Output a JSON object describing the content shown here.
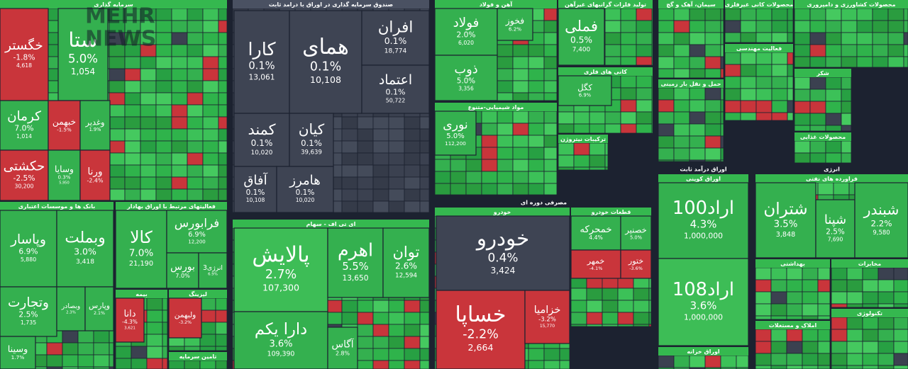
{
  "watermark": [
    "MEHR",
    "NEWS"
  ],
  "groups": [
    "مصرفی دوره ای",
    "اوراق درآمد ثابت",
    "انرژی"
  ],
  "sectors": [
    {
      "title": "سرمایه گذاری",
      "tiles": [
        {
          "name": "خگستر",
          "change": "-1.8%",
          "price": "4,618"
        },
        {
          "name": "ستا",
          "change": "5.0%",
          "price": "1,054"
        },
        {
          "name": "کرمان",
          "change": "7.0%",
          "price": "1,014"
        },
        {
          "name": "حکشتی",
          "change": "-2.5%",
          "price": "30,200"
        },
        {
          "name": "خبهمن",
          "change": "-1.5%"
        },
        {
          "name": "وغدیر",
          "change": "1.9%"
        },
        {
          "name": "وسایا",
          "change": "0.3%",
          "price": "5,950"
        },
        {
          "name": "ورنا",
          "change": "-2.4%"
        }
      ]
    },
    {
      "title": "بانک ها و موسسات اعتباری",
      "tiles": [
        {
          "name": "وپاسار",
          "change": "6.9%",
          "price": "5,880"
        },
        {
          "name": "وبملت",
          "change": "3.0%",
          "price": "3,418"
        },
        {
          "name": "وتجارت",
          "change": "2.5%",
          "price": "1,735"
        },
        {
          "name": "وبصادر",
          "change": "2.3%"
        },
        {
          "name": "وپارس",
          "change": "2.1%"
        },
        {
          "name": "وسینا",
          "change": "1.7%"
        }
      ]
    },
    {
      "title": "فعالیتهای مرتبط با اوراق بهادار",
      "tiles": [
        {
          "name": "کالا",
          "change": "7.0%",
          "price": "21,190"
        },
        {
          "name": "فرابورس",
          "change": "6.9%",
          "price": "12,200"
        },
        {
          "name": "بورس",
          "change": "7.0%"
        },
        {
          "name": "انرژی3",
          "change": "6.9%"
        }
      ]
    },
    {
      "title": "بیمه",
      "tiles": [
        {
          "name": "دانا",
          "change": "-4.3%",
          "price": "3,621"
        }
      ]
    },
    {
      "title": "لیزینگ",
      "tiles": [
        {
          "name": "ولبهمن",
          "change": "-3.2%"
        }
      ]
    },
    {
      "title": "تامین سرمایه",
      "tiles": []
    },
    {
      "title": "صندوق سرمایه گذاری در اوراق با درامد ثابت",
      "tiles": [
        {
          "name": "کارا",
          "change": "0.1%",
          "price": "13,061"
        },
        {
          "name": "همای",
          "change": "0.1%",
          "price": "10,108"
        },
        {
          "name": "افران",
          "change": "0.1%",
          "price": "18,774"
        },
        {
          "name": "اعتماد",
          "change": "0.1%",
          "price": "50,722"
        },
        {
          "name": "کمند",
          "change": "0.1%",
          "price": "10,020"
        },
        {
          "name": "کیان",
          "change": "0.1%",
          "price": "39,639"
        },
        {
          "name": "آفاق",
          "change": "0.1%",
          "price": "10,108"
        },
        {
          "name": "هامرز",
          "change": "0.1%",
          "price": "10,020"
        }
      ]
    },
    {
      "title": "ای تی اف - سهام",
      "tiles": [
        {
          "name": "پالایش",
          "change": "2.7%",
          "price": "107,300"
        },
        {
          "name": "اهرم",
          "change": "5.5%",
          "price": "13,650"
        },
        {
          "name": "توان",
          "change": "2.6%",
          "price": "12,594"
        },
        {
          "name": "دارا یکم",
          "change": "3.6%",
          "price": "109,390"
        },
        {
          "name": "آگاس",
          "change": "2.8%"
        }
      ]
    },
    {
      "title": "آهن و فولاد",
      "tiles": [
        {
          "name": "فولاد",
          "change": "2.0%",
          "price": "6,020"
        },
        {
          "name": "ذوب",
          "change": "5.0%",
          "price": "3,356"
        },
        {
          "name": "فخوز",
          "change": "6.2%"
        }
      ]
    },
    {
      "title": "مواد شیمیایی-متنوع",
      "tiles": [
        {
          "name": "نوری",
          "change": "5.0%",
          "price": "112,200"
        }
      ]
    },
    {
      "title": "تولید فلزات گرانبهای غیرآهن",
      "tiles": [
        {
          "name": "فملی",
          "change": "0.5%",
          "price": "7,400"
        }
      ]
    },
    {
      "title": "کانی های فلزی",
      "tiles": [
        {
          "name": "کگل",
          "change": "6.9%"
        }
      ]
    },
    {
      "title": "ترکیبات نیتروژن",
      "tiles": []
    },
    {
      "title": "خودرو",
      "tiles": [
        {
          "name": "خودرو",
          "change": "0.4%",
          "price": "3,424"
        },
        {
          "name": "خساپا",
          "change": "-2.2%",
          "price": "2,664"
        },
        {
          "name": "خزامیا",
          "change": "-3.2%",
          "price": "15,770"
        }
      ]
    },
    {
      "title": "قطعات خودرو",
      "tiles": [
        {
          "name": "خمحرکه",
          "change": "4.4%"
        },
        {
          "name": "خصنیر",
          "change": "5.0%"
        },
        {
          "name": "خمهر",
          "change": "-4.1%"
        },
        {
          "name": "ختور",
          "change": "-3.6%"
        }
      ]
    },
    {
      "title": "اوراق کوپنی",
      "tiles": [
        {
          "name": "اراد100",
          "change": "4.3%",
          "price": "1,000,000"
        },
        {
          "name": "اراد108",
          "change": "3.6%",
          "price": "1,000,000"
        }
      ]
    },
    {
      "title": "فراورده های نفتی",
      "tiles": [
        {
          "name": "شتران",
          "change": "3.5%",
          "price": "3,848"
        },
        {
          "name": "شپنا",
          "change": "2.5%",
          "price": "7,690"
        },
        {
          "name": "شبندر",
          "change": "2.2%",
          "price": "9,580"
        }
      ]
    },
    {
      "title": "سیمان، آهک و گچ",
      "tiles": []
    },
    {
      "title": "محصولات کانی غیرفلزی",
      "tiles": []
    },
    {
      "title": "محصولات کشاورزی و دامپروری",
      "tiles": []
    },
    {
      "title": "فعالیت مهندسی",
      "tiles": []
    },
    {
      "title": "حمل و نقل بار زمینی",
      "tiles": []
    },
    {
      "title": "شکر",
      "tiles": []
    },
    {
      "title": "محصولات غذایی",
      "tiles": []
    },
    {
      "title": "بهداشتی",
      "tiles": []
    },
    {
      "title": "مخابرات",
      "tiles": []
    },
    {
      "title": "تکنولوژی",
      "tiles": []
    },
    {
      "title": "املاک و مستغلات",
      "tiles": []
    },
    {
      "title": "اوراق خزانه",
      "tiles": []
    }
  ]
}
